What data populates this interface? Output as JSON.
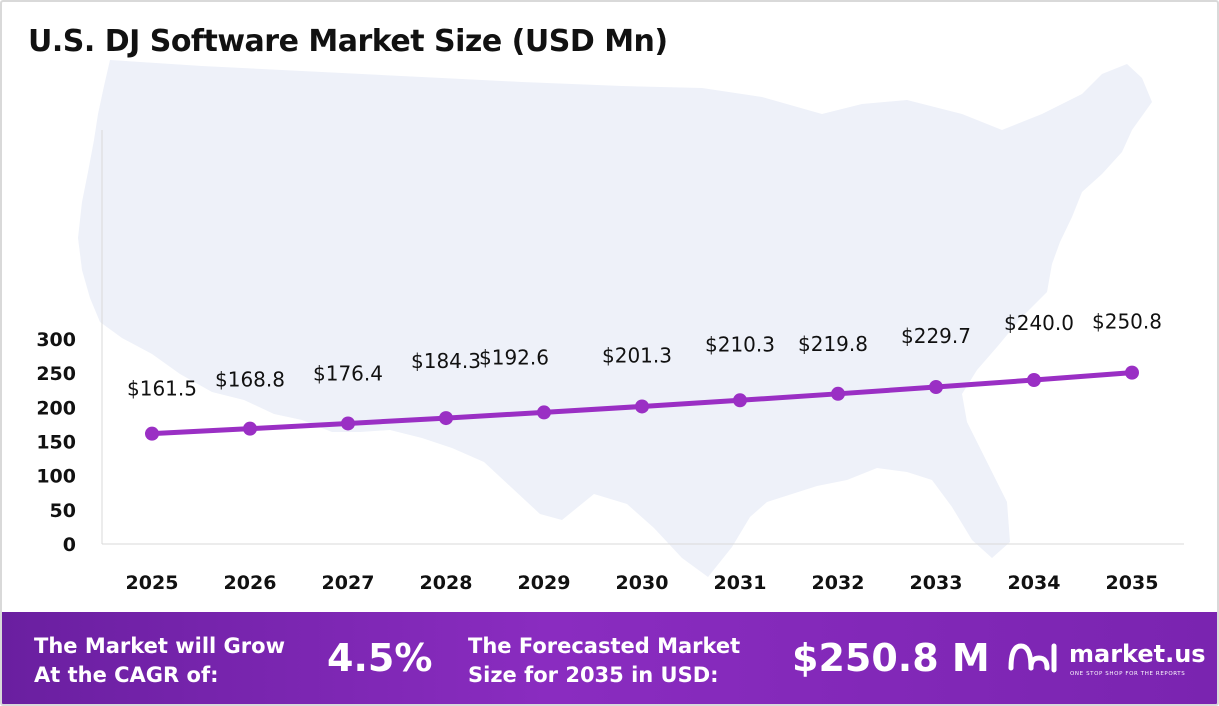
{
  "title": "U.S. DJ Software Market Size (USD Mn)",
  "colors": {
    "line": "#9a2fc4",
    "marker": "#9a2fc4",
    "map": "#eef1f9",
    "footer_start": "#6a1fa0",
    "footer_end": "#8a2cc0"
  },
  "chart_data": {
    "type": "line",
    "title": "U.S. DJ Software Market Size (USD Mn)",
    "categories": [
      "2025",
      "2026",
      "2027",
      "2028",
      "2029",
      "2030",
      "2031",
      "2032",
      "2033",
      "2034",
      "2035"
    ],
    "values": [
      161.5,
      168.8,
      176.4,
      184.3,
      192.6,
      201.3,
      210.3,
      219.8,
      229.7,
      240.0,
      250.8
    ],
    "data_labels": [
      "$161.5",
      "$168.8",
      "$176.4",
      "$184.3",
      "$192.6",
      "$201.3",
      "$210.3",
      "$219.8",
      "$229.7",
      "$240.0",
      "$250.8"
    ],
    "y_ticks": [
      "0",
      "50",
      "100",
      "150",
      "200",
      "250",
      "300"
    ],
    "ylim": [
      0,
      300
    ],
    "xlabel": "",
    "ylabel": "",
    "grid": false,
    "legend": "none"
  },
  "footer": {
    "cagr_label_line1": "The Market will Grow",
    "cagr_label_line2": "At the CAGR of:",
    "cagr_value": "4.5%",
    "size_label_line1": "The Forecasted Market",
    "size_label_line2": "Size for 2035 in USD:",
    "size_value": "$250.8 M"
  },
  "logo": {
    "name": "market.us",
    "tagline": "ONE STOP SHOP FOR THE REPORTS",
    "icon": "market-us-logo-icon"
  }
}
